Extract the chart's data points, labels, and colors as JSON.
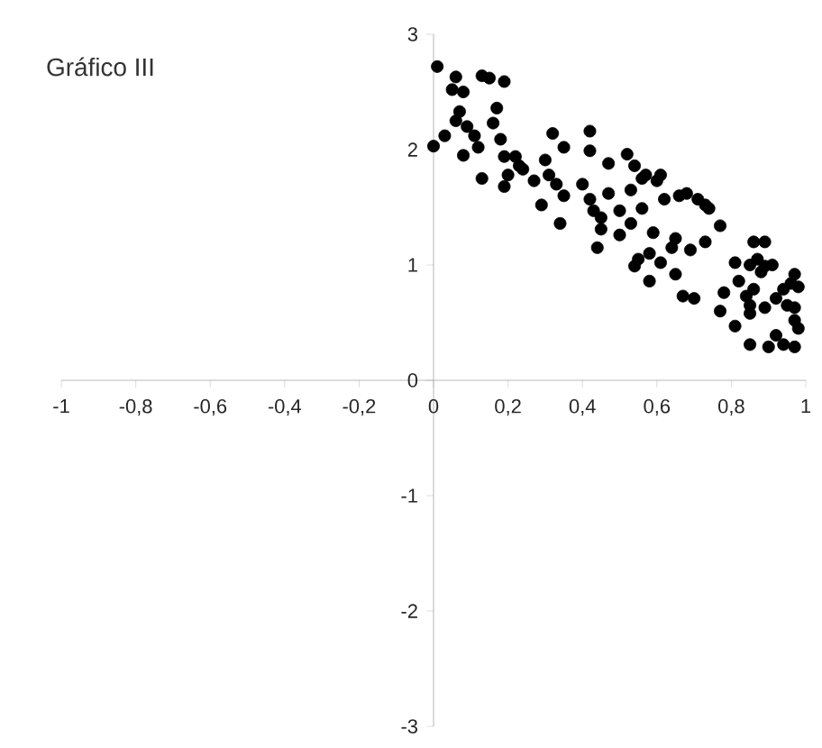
{
  "chart_data": {
    "type": "scatter",
    "title": "Gráfico III",
    "color": "#000000",
    "xlim": [
      -1,
      1
    ],
    "ylim": [
      -3,
      3
    ],
    "xticks": [
      -1,
      {
        "value": -0.8,
        "label": "-0,8"
      },
      {
        "value": -0.6,
        "label": "-0,6"
      },
      {
        "value": -0.4,
        "label": "-0,4"
      },
      {
        "value": -0.2,
        "label": "-0,2"
      },
      0,
      {
        "value": 0.2,
        "label": "0,2"
      },
      {
        "value": 0.4,
        "label": "0,4"
      },
      {
        "value": 0.6,
        "label": "0,6"
      },
      {
        "value": 0.8,
        "label": "0,8"
      },
      1
    ],
    "yticks": [
      -3,
      -2,
      -1,
      0,
      1,
      2,
      3
    ],
    "x": [
      0.01,
      0,
      0.03,
      0.06,
      0.05,
      0.08,
      0.07,
      0.06,
      0.08,
      0.09,
      0.11,
      0.12,
      0.13,
      0.13,
      0.15,
      0.19,
      0.17,
      0.16,
      0.18,
      0.19,
      0.22,
      0.23,
      0.2,
      0.19,
      0.24,
      0.27,
      0.3,
      0.32,
      0.35,
      0.31,
      0.33,
      0.29,
      0.35,
      0.34,
      0.42,
      0.42,
      0.47,
      0.4,
      0.42,
      0.43,
      0.45,
      0.47,
      0.45,
      0.44,
      0.5,
      0.5,
      0.52,
      0.53,
      0.54,
      0.53,
      0.56,
      0.57,
      0.56,
      0.55,
      0.54,
      0.58,
      0.59,
      0.58,
      0.6,
      0.61,
      0.62,
      0.61,
      0.64,
      0.65,
      0.65,
      0.66,
      0.68,
      0.71,
      0.69,
      0.67,
      0.7,
      0.73,
      0.74,
      0.73,
      0.77,
      0.77,
      0.78,
      0.81,
      0.81,
      0.82,
      0.84,
      0.85,
      0.86,
      0.89,
      0.87,
      0.88,
      0.89,
      0.91,
      0.85,
      0.86,
      0.85,
      0.9,
      0.92,
      0.92,
      0.94,
      0.96,
      0.97,
      0.98,
      0.95,
      0.97,
      0.97,
      0.98,
      0.94,
      0.97,
      0.89,
      0.85
    ],
    "values": [
      2.72,
      2.03,
      2.12,
      2.63,
      2.52,
      2.5,
      2.33,
      2.25,
      1.95,
      2.2,
      2.12,
      2.02,
      1.75,
      2.64,
      2.62,
      2.59,
      2.36,
      2.23,
      2.09,
      1.94,
      1.94,
      1.86,
      1.78,
      1.68,
      1.83,
      1.73,
      1.91,
      2.14,
      2.02,
      1.78,
      1.7,
      1.52,
      1.6,
      1.36,
      2.16,
      1.99,
      1.88,
      1.7,
      1.57,
      1.47,
      1.41,
      1.62,
      1.31,
      1.15,
      1.47,
      1.26,
      1.96,
      1.65,
      1.86,
      1.36,
      1.75,
      1.78,
      1.49,
      1.05,
      0.99,
      0.86,
      1.28,
      1.1,
      1.73,
      1.78,
      1.57,
      1.02,
      1.15,
      1.23,
      0.92,
      1.6,
      1.62,
      1.57,
      1.13,
      0.73,
      0.71,
      1.52,
      1.49,
      1.2,
      1.34,
      0.6,
      0.76,
      0.47,
      1.02,
      0.86,
      0.73,
      1.0,
      1.2,
      1.2,
      1.05,
      0.94,
      0.99,
      1.0,
      0.65,
      0.79,
      0.31,
      0.29,
      0.71,
      0.39,
      0.79,
      0.84,
      0.92,
      0.81,
      0.65,
      0.63,
      0.52,
      0.45,
      0.31,
      0.29,
      0.63,
      0.58
    ]
  }
}
